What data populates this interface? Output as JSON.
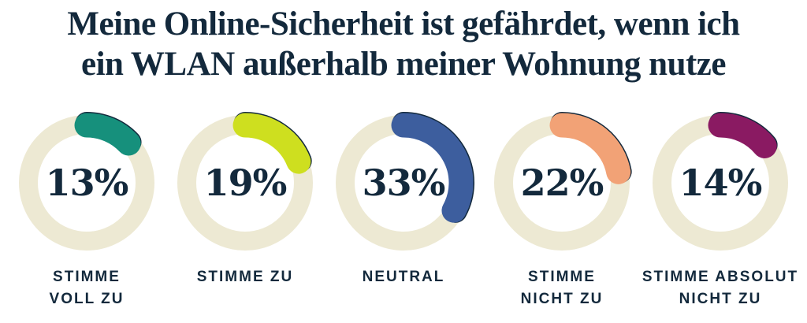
{
  "chart_data": {
    "type": "pie",
    "subtype": "donut-small-multiples",
    "title": "Meine Online-Sicherheit ist gefährdet, wenn ich\nein WLAN außerhalb meiner Wohnung nutze",
    "categories": [
      "STIMME\nVOLL ZU",
      "STIMME ZU",
      "NEUTRAL",
      "STIMME\nNICHT ZU",
      "STIMME ABSOLUT\nNICHT ZU"
    ],
    "values": [
      13,
      19,
      33,
      22,
      14
    ],
    "unit": "%",
    "value_labels": [
      "13%",
      "19%",
      "33%",
      "22%",
      "14%"
    ],
    "arc_colors": [
      "#16907C",
      "#CEDF1F",
      "#3D5E9E",
      "#F2A276",
      "#8A1A62"
    ],
    "ring_color": "#EDE9D3",
    "text_color": "#13293C",
    "arc_outline_color": "#13293C",
    "arc_start_position": "top",
    "arc_direction": "clockwise",
    "legend_position": "below-each-donut"
  }
}
